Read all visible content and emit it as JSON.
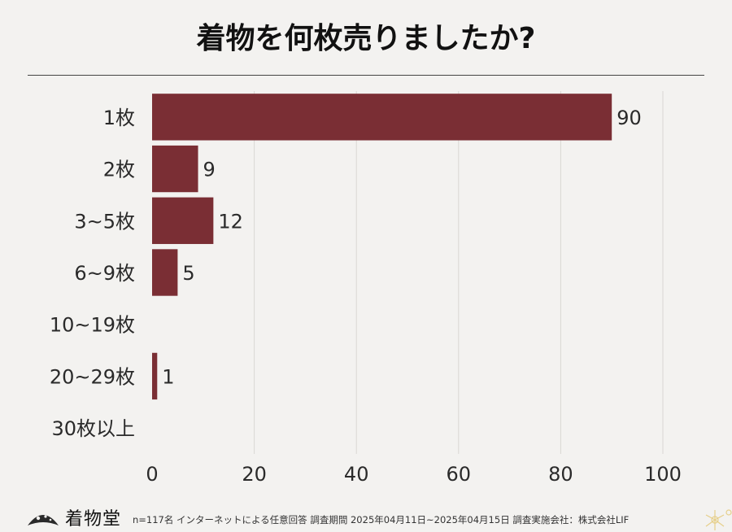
{
  "header": {
    "title": "着物を何枚売りましたか?"
  },
  "chart_data": {
    "type": "bar",
    "orientation": "horizontal",
    "title": "着物を何枚売りましたか?",
    "categories": [
      "1枚",
      "2枚",
      "3~5枚",
      "6~9枚",
      "10~19枚",
      "20~29枚",
      "30枚以上"
    ],
    "values": [
      90,
      9,
      12,
      5,
      0,
      1,
      0
    ],
    "data_labels": [
      "90",
      "9",
      "12",
      "5",
      "",
      "1",
      ""
    ],
    "xlim": [
      0,
      100
    ],
    "x_ticks": [
      "0",
      "20",
      "40",
      "60",
      "80",
      "100"
    ],
    "grid": "vertical",
    "bar_color": "#7a2e34"
  },
  "footer": {
    "logo_text": "着物堂",
    "note": "n=117名 インターネットによる任意回答 調査期間 2025年04月11日~2025年04月15日 調査実施会社：株式会社LIF"
  }
}
